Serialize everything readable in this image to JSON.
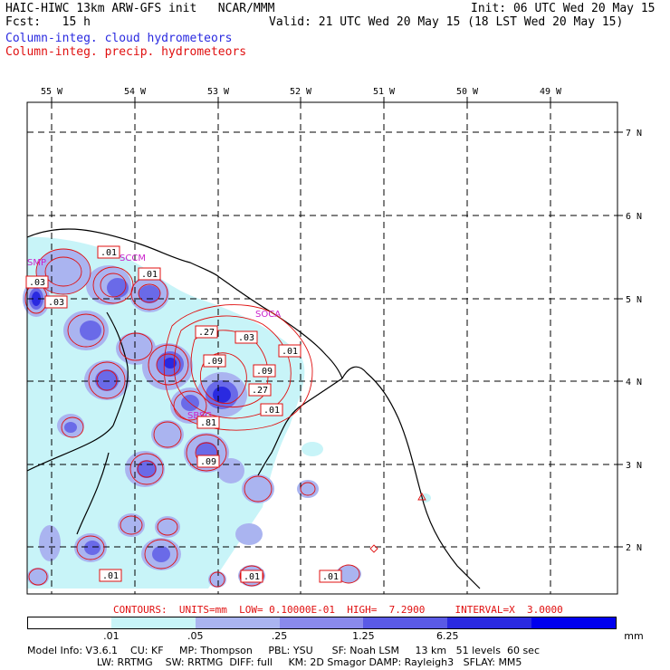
{
  "header": {
    "title_left": "HAIC-HIWC 13km ARW-GFS init   NCAR/MMM",
    "fcst": "Fcst:   15 h",
    "init": "Init: 06 UTC Wed 20 May 15",
    "valid": "Valid: 21 UTC Wed 20 May 15 (18 LST Wed 20 May 15)",
    "legend_cloud": "Column-integ. cloud hydrometeors",
    "legend_precip": "Column-integ. precip. hydrometeors",
    "legend_cloud_color": "#2a2ae0",
    "legend_precip_color": "#e01010"
  },
  "map": {
    "lon_labels": [
      "55 W",
      "54 W",
      "53 W",
      "52 W",
      "51 W",
      "50 W",
      "49 W"
    ],
    "lat_labels": [
      "7 N",
      "6 N",
      "5 N",
      "4 N",
      "3 N",
      "2 N"
    ],
    "stations": [
      "SMP",
      "SCCM",
      "SOCA",
      "SBSG"
    ],
    "contour_labels": [
      ".01",
      ".03",
      ".01",
      ".03",
      ".27",
      ".03",
      ".01",
      ".09",
      ".09",
      ".27",
      ".01",
      ".81",
      ".09",
      ".01",
      ".01",
      ".01"
    ],
    "contour_color": "#e01010",
    "station_color": "#cc22cc"
  },
  "colorbar": {
    "contours_line": "CONTOURS:  UNITS=mm  LOW= 0.10000E-01  HIGH=  7.2900     INTERVAL=X  3.0000",
    "tick_labels": [
      ".01",
      ".05",
      ".25",
      "1.25",
      "6.25"
    ],
    "units": "mm",
    "colors": [
      "#ffffff",
      "#c8f4f8",
      "#aab4f0",
      "#8a8aec",
      "#5a5ae6",
      "#2a2ae0",
      "#0000ee"
    ]
  },
  "model_info": {
    "line1": "Model Info: V3.6.1    CU: KF     MP: Thompson     PBL: YSU      SF: Noah LSM     13 km   51 levels  60 sec",
    "line2": "                      LW: RRTMG    SW: RRTMG  DIFF: full     KM: 2D Smagor DAMP: Rayleigh3   SFLAY: MM5"
  }
}
